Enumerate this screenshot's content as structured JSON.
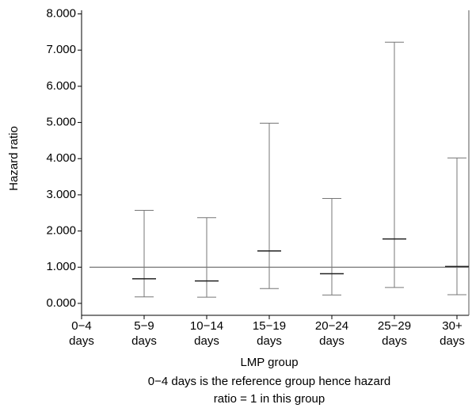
{
  "chart_data": {
    "type": "errorbar",
    "y_label": "Hazard ratio",
    "x_label": "LMP group",
    "notes": [
      "0−4 days is the reference group hence hazard",
      "ratio = 1 in this group"
    ],
    "categories": [
      "0−4 days",
      "5−9 days",
      "10−14 days",
      "15−19 days",
      "20−24 days",
      "25−29 days",
      "30+ days"
    ],
    "values": [
      null,
      0.68,
      0.62,
      1.45,
      0.82,
      1.78,
      1.02
    ],
    "lower": [
      null,
      0.18,
      0.17,
      0.41,
      0.23,
      0.44,
      0.24
    ],
    "upper": [
      null,
      2.57,
      2.37,
      4.98,
      2.9,
      7.22,
      4.02
    ],
    "reference_line": 1,
    "color": "#777777",
    "ylim": [
      -0.33,
      8.1
    ],
    "yticks": [
      {
        "value": 0,
        "label": "0.000"
      },
      {
        "value": 1,
        "label": "1.000"
      },
      {
        "value": 2,
        "label": "2.000"
      },
      {
        "value": 3,
        "label": "3.000"
      },
      {
        "value": 4,
        "label": "4.000"
      },
      {
        "value": 5,
        "label": "5.000"
      },
      {
        "value": 6,
        "label": "6.000"
      },
      {
        "value": 7,
        "label": "7.000"
      },
      {
        "value": 8,
        "label": "8.000"
      }
    ]
  }
}
